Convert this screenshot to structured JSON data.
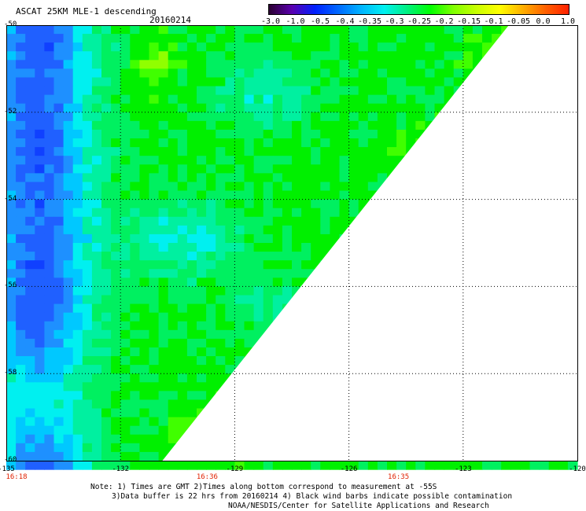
{
  "header": {
    "title": "ASCAT 25KM MLE-1 descending",
    "date": "20160214"
  },
  "colorbar": {
    "labels": [
      "-3.0",
      "-1.0",
      "-0.5",
      "-0.4",
      "-0.35",
      "-0.3",
      "-0.25",
      "-0.2",
      "-0.15",
      "-0.1",
      "-0.05",
      "0.0",
      "1.0"
    ],
    "colors": [
      "#2a0030",
      "#5a00b0",
      "#0020ff",
      "#0068ff",
      "#00b4ff",
      "#00f0f0",
      "#00f080",
      "#00ff00",
      "#80ff00",
      "#c8ff00",
      "#ffff00",
      "#ffb000",
      "#ff6000",
      "#ff2000"
    ]
  },
  "map": {
    "lat_labels": [
      "-50",
      "-52",
      "-54",
      "-56",
      "-58",
      "-60"
    ],
    "lon_labels": [
      "-135",
      "-132",
      "-129",
      "-126",
      "-123",
      "-120"
    ],
    "time_labels": [
      "16:18",
      "16:36",
      "16:35"
    ],
    "lon_range": [
      -135,
      -120
    ],
    "lat_range": [
      -60,
      -50
    ],
    "swath_edge": [
      [
        -130.9,
        -60
      ],
      [
        -121.8,
        -50
      ]
    ],
    "grid_lats": [
      -52,
      -54,
      -56,
      -58
    ],
    "grid_lons": [
      -132,
      -129,
      -126,
      -123
    ],
    "pixel_step_deg": [
      0.25,
      0.2
    ]
  },
  "footer": {
    "line1": "Note: 1) Times are GMT 2)Times along bottom correspond to measurement at -55S",
    "line2": "3)Data buffer is 22 hrs from 20160214 4) Black wind barbs indicate possible contamination",
    "line3": "NOAA/NESDIS/Center for Satellite Applications and Research"
  }
}
